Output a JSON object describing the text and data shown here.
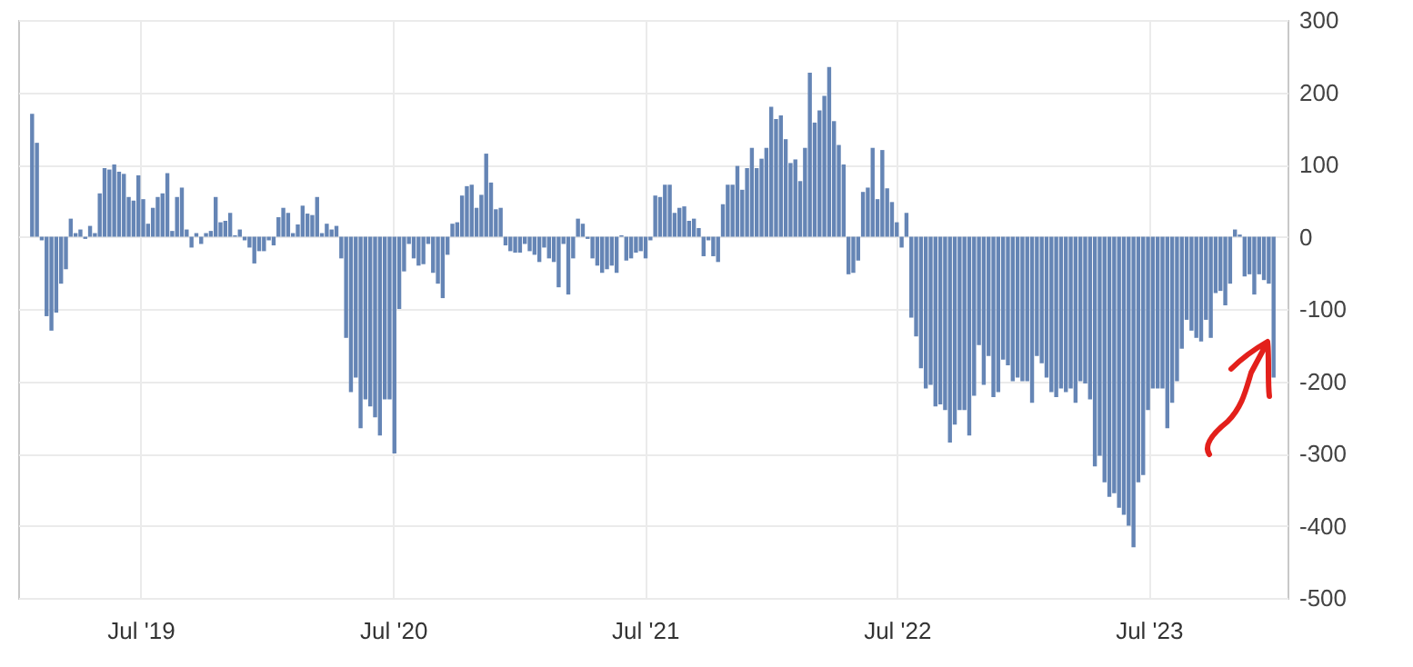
{
  "chart_data": {
    "type": "bar",
    "color": "#6585b5",
    "grid": true,
    "x": [
      "2019-01-25",
      "2019-02-01",
      "2019-02-08",
      "2019-02-15",
      "2019-02-22",
      "2019-03-01",
      "2019-03-08",
      "2019-03-15",
      "2019-03-22",
      "2019-03-29",
      "2019-04-05",
      "2019-04-12",
      "2019-04-19",
      "2019-04-26",
      "2019-05-03",
      "2019-05-10",
      "2019-05-17",
      "2019-05-24",
      "2019-05-31",
      "2019-06-07",
      "2019-06-14",
      "2019-06-21",
      "2019-06-28",
      "2019-07-05",
      "2019-07-12",
      "2019-07-19",
      "2019-07-26",
      "2019-08-02",
      "2019-08-09",
      "2019-08-16",
      "2019-08-23",
      "2019-08-30",
      "2019-09-06",
      "2019-09-13",
      "2019-09-20",
      "2019-09-27",
      "2019-10-04",
      "2019-10-11",
      "2019-10-18",
      "2019-10-25",
      "2019-11-01",
      "2019-11-08",
      "2019-11-15",
      "2019-11-22",
      "2019-11-29",
      "2019-12-06",
      "2019-12-13",
      "2019-12-20",
      "2019-12-27",
      "2020-01-03",
      "2020-01-10",
      "2020-01-17",
      "2020-01-24",
      "2020-01-31",
      "2020-02-07",
      "2020-02-14",
      "2020-02-21",
      "2020-02-28",
      "2020-03-06",
      "2020-03-13",
      "2020-03-20",
      "2020-03-27",
      "2020-04-03",
      "2020-04-10",
      "2020-04-17",
      "2020-04-24",
      "2020-05-01",
      "2020-05-08",
      "2020-05-15",
      "2020-05-22",
      "2020-05-29",
      "2020-06-05",
      "2020-06-12",
      "2020-06-19",
      "2020-06-26",
      "2020-07-03",
      "2020-07-10",
      "2020-07-17",
      "2020-07-24",
      "2020-07-31",
      "2020-08-07",
      "2020-08-14",
      "2020-08-21",
      "2020-08-28",
      "2020-09-04",
      "2020-09-11",
      "2020-09-18",
      "2020-09-25",
      "2020-10-02",
      "2020-10-09",
      "2020-10-16",
      "2020-10-23",
      "2020-10-30",
      "2020-11-06",
      "2020-11-13",
      "2020-11-20",
      "2020-11-27",
      "2020-12-04",
      "2020-12-11",
      "2020-12-18",
      "2020-12-25",
      "2021-01-01",
      "2021-01-08",
      "2021-01-15",
      "2021-01-22",
      "2021-01-29",
      "2021-02-05",
      "2021-02-12",
      "2021-02-19",
      "2021-02-26",
      "2021-03-05",
      "2021-03-12",
      "2021-03-19",
      "2021-03-26",
      "2021-04-02",
      "2021-04-09",
      "2021-04-16",
      "2021-04-23",
      "2021-04-30",
      "2021-05-07",
      "2021-05-14",
      "2021-05-21",
      "2021-05-28",
      "2021-06-04",
      "2021-06-11",
      "2021-06-18",
      "2021-06-25",
      "2021-07-02",
      "2021-07-09",
      "2021-07-16",
      "2021-07-23",
      "2021-07-30",
      "2021-08-06",
      "2021-08-13",
      "2021-08-20",
      "2021-08-27",
      "2021-09-03",
      "2021-09-10",
      "2021-09-17",
      "2021-09-24",
      "2021-10-01",
      "2021-10-08",
      "2021-10-15",
      "2021-10-22",
      "2021-10-29",
      "2021-11-05",
      "2021-11-12",
      "2021-11-19",
      "2021-11-26",
      "2021-12-03",
      "2021-12-10",
      "2021-12-17",
      "2021-12-24",
      "2021-12-31",
      "2022-01-07",
      "2022-01-14",
      "2022-01-21",
      "2022-01-28",
      "2022-02-04",
      "2022-02-11",
      "2022-02-18",
      "2022-02-25",
      "2022-03-04",
      "2022-03-11",
      "2022-03-18",
      "2022-03-25",
      "2022-04-01",
      "2022-04-08",
      "2022-04-15",
      "2022-04-22",
      "2022-04-29",
      "2022-05-06",
      "2022-05-13",
      "2022-05-20",
      "2022-05-27",
      "2022-06-03",
      "2022-06-10",
      "2022-06-17",
      "2022-06-24",
      "2022-07-01",
      "2022-07-08",
      "2022-07-15",
      "2022-07-22",
      "2022-07-29",
      "2022-08-05",
      "2022-08-12",
      "2022-08-19",
      "2022-08-26",
      "2022-09-02",
      "2022-09-09",
      "2022-09-16",
      "2022-09-23",
      "2022-09-30",
      "2022-10-07",
      "2022-10-14",
      "2022-10-21",
      "2022-10-28",
      "2022-11-04",
      "2022-11-11",
      "2022-11-18",
      "2022-11-25",
      "2022-12-02",
      "2022-12-09",
      "2022-12-16",
      "2022-12-23",
      "2022-12-30",
      "2023-01-06",
      "2023-01-13",
      "2023-01-20",
      "2023-01-27",
      "2023-02-03",
      "2023-02-10",
      "2023-02-17",
      "2023-02-24",
      "2023-03-03",
      "2023-03-10",
      "2023-03-17",
      "2023-03-24",
      "2023-03-31",
      "2023-04-07",
      "2023-04-14",
      "2023-04-21",
      "2023-04-28",
      "2023-05-05",
      "2023-05-12",
      "2023-05-19",
      "2023-05-26",
      "2023-06-02",
      "2023-06-09",
      "2023-06-16",
      "2023-06-23",
      "2023-06-30",
      "2023-07-07",
      "2023-07-14",
      "2023-07-21",
      "2023-07-28",
      "2023-08-04",
      "2023-08-11",
      "2023-08-18",
      "2023-08-25",
      "2023-09-01",
      "2023-09-08",
      "2023-09-15",
      "2023-09-22",
      "2023-09-29",
      "2023-10-06",
      "2023-10-13",
      "2023-10-20",
      "2023-10-27",
      "2023-11-03",
      "2023-11-10",
      "2023-11-17",
      "2023-11-24",
      "2023-12-01",
      "2023-12-08",
      "2023-12-15",
      "2023-12-22",
      "2023-12-29"
    ],
    "values": [
      170,
      130,
      -5,
      -110,
      -130,
      -105,
      -65,
      -45,
      25,
      5,
      10,
      -3,
      15,
      5,
      60,
      95,
      93,
      100,
      90,
      87,
      55,
      50,
      85,
      52,
      18,
      40,
      55,
      60,
      88,
      8,
      55,
      68,
      10,
      -15,
      5,
      -10,
      5,
      8,
      55,
      20,
      22,
      33,
      2,
      10,
      -5,
      -15,
      -37,
      -20,
      -20,
      -5,
      -12,
      27,
      40,
      33,
      5,
      17,
      43,
      32,
      30,
      55,
      5,
      18,
      10,
      15,
      -30,
      -140,
      -215,
      -195,
      -265,
      -225,
      -235,
      -250,
      -275,
      -225,
      -225,
      -300,
      -100,
      -48,
      -10,
      -30,
      -40,
      -38,
      -10,
      -50,
      -65,
      -85,
      -25,
      18,
      20,
      57,
      70,
      72,
      40,
      58,
      115,
      75,
      38,
      40,
      -12,
      -20,
      -22,
      -22,
      -10,
      -20,
      -25,
      -35,
      -15,
      -30,
      -35,
      -70,
      -10,
      -80,
      -30,
      25,
      18,
      -3,
      -30,
      -40,
      -50,
      -45,
      -40,
      -50,
      2,
      -33,
      -30,
      -22,
      -20,
      -30,
      -5,
      57,
      55,
      72,
      72,
      33,
      40,
      42,
      22,
      25,
      12,
      -27,
      -5,
      -27,
      -35,
      45,
      72,
      72,
      98,
      65,
      95,
      123,
      95,
      108,
      123,
      180,
      163,
      168,
      135,
      102,
      107,
      77,
      123,
      227,
      158,
      175,
      195,
      235,
      160,
      127,
      100,
      -52,
      -50,
      -33,
      62,
      68,
      123,
      52,
      120,
      67,
      48,
      20,
      -15,
      33,
      -112,
      -138,
      -182,
      -210,
      -205,
      -235,
      -232,
      -240,
      -285,
      -260,
      -240,
      -240,
      -275,
      -220,
      -150,
      -205,
      -165,
      -222,
      -215,
      -170,
      -178,
      -200,
      -195,
      -200,
      -200,
      -230,
      -165,
      -175,
      -195,
      -215,
      -222,
      -210,
      -215,
      -210,
      -230,
      -200,
      -203,
      -225,
      -318,
      -303,
      -340,
      -360,
      -355,
      -375,
      -385,
      -400,
      -430,
      -340,
      -330,
      -240,
      -210,
      -210,
      -210,
      -265,
      -230,
      -200,
      -155,
      -115,
      -130,
      -140,
      -145,
      -115,
      -140,
      -78,
      -75,
      -95,
      -65,
      10,
      3,
      -55,
      -52,
      -80,
      -52,
      -60,
      -65,
      -195
    ],
    "xlim": [
      "2019-01-18",
      "2024-01-05"
    ],
    "xticks": [
      {
        "value": "2019-07-01",
        "label": "Jul '19"
      },
      {
        "value": "2020-07-01",
        "label": "Jul '20"
      },
      {
        "value": "2021-07-01",
        "label": "Jul '21"
      },
      {
        "value": "2022-07-01",
        "label": "Jul '22"
      },
      {
        "value": "2023-07-01",
        "label": "Jul '23"
      }
    ],
    "ylim": [
      -500,
      300
    ],
    "yticks": [
      -500,
      -400,
      -300,
      -200,
      -100,
      0,
      100,
      200,
      300
    ]
  }
}
